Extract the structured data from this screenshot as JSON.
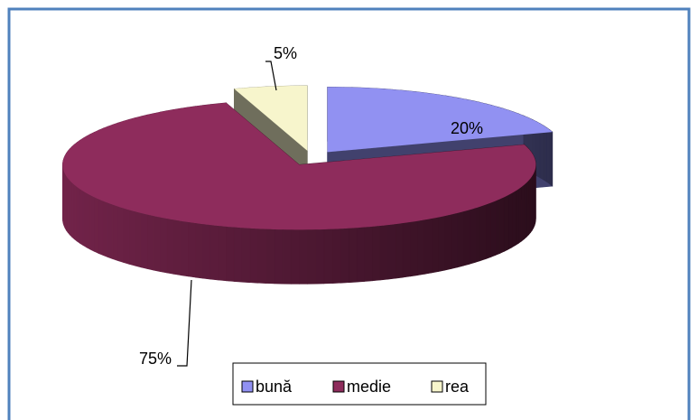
{
  "chart_data": {
    "type": "pie3d",
    "categories": [
      "bună",
      "medie",
      "rea"
    ],
    "values": [
      20,
      75,
      5
    ],
    "value_labels": [
      "20%",
      "75%",
      "5%"
    ],
    "colors": [
      "#9191f2",
      "#8e2c5c",
      "#f7f5cc"
    ],
    "legend": "bottom"
  }
}
